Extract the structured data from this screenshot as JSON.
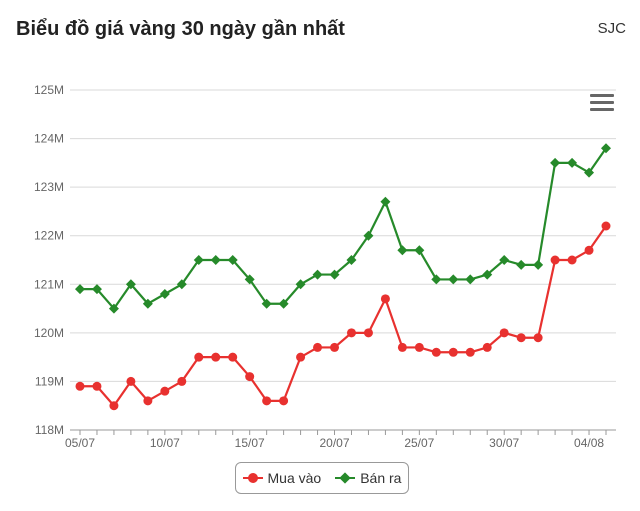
{
  "header": {
    "title": "Biểu đồ giá vàng 30 ngày gần nhất",
    "source": "SJC"
  },
  "menu_icon": "hamburger-menu-icon",
  "chart_data": {
    "type": "line",
    "x": [
      "05/07",
      "06/07",
      "07/07",
      "08/07",
      "09/07",
      "10/07",
      "11/07",
      "12/07",
      "13/07",
      "14/07",
      "15/07",
      "16/07",
      "17/07",
      "18/07",
      "19/07",
      "20/07",
      "21/07",
      "22/07",
      "23/07",
      "24/07",
      "25/07",
      "26/07",
      "27/07",
      "28/07",
      "29/07",
      "30/07",
      "31/07",
      "01/08",
      "02/08",
      "03/08",
      "04/08",
      "05/08"
    ],
    "x_tick_labels": [
      "05/07",
      "10/07",
      "15/07",
      "20/07",
      "25/07",
      "30/07",
      "04/08"
    ],
    "y_tick_labels": [
      "118M",
      "119M",
      "120M",
      "121M",
      "122M",
      "123M",
      "124M",
      "125M"
    ],
    "ylim": [
      118,
      125
    ],
    "y_unit": "M",
    "grid": true,
    "legend_position": "bottom-center",
    "series": [
      {
        "name": "Mua vào",
        "color": "#e8312f",
        "marker": "circle",
        "values": [
          118.9,
          118.9,
          118.5,
          119.0,
          118.6,
          118.8,
          119.0,
          119.5,
          119.5,
          119.5,
          119.1,
          118.6,
          118.6,
          119.5,
          119.7,
          119.7,
          120.0,
          120.0,
          120.7,
          119.7,
          119.7,
          119.6,
          119.6,
          119.6,
          119.7,
          120.0,
          119.9,
          119.9,
          121.5,
          121.5,
          121.7,
          122.2
        ]
      },
      {
        "name": "Bán ra",
        "color": "#268a2a",
        "marker": "diamond",
        "values": [
          120.9,
          120.9,
          120.5,
          121.0,
          120.6,
          120.8,
          121.0,
          121.5,
          121.5,
          121.5,
          121.1,
          120.6,
          120.6,
          121.0,
          121.2,
          121.2,
          121.5,
          122.0,
          122.7,
          121.7,
          121.7,
          121.1,
          121.1,
          121.1,
          121.2,
          121.5,
          121.4,
          121.4,
          123.5,
          123.5,
          123.3,
          123.8
        ]
      }
    ]
  }
}
